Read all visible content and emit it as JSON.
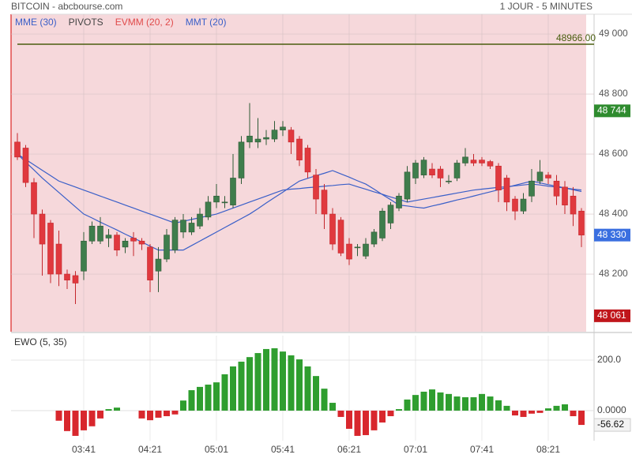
{
  "header": {
    "title": "BITCOIN - abcbourse.com",
    "period": "1 JOUR - 5 MINUTES"
  },
  "chart_data": [
    {
      "type": "candlestick",
      "categories": [
        null,
        null,
        null,
        null,
        null,
        null,
        null,
        null,
        "03:41",
        null,
        null,
        null,
        null,
        null,
        null,
        null,
        "04:21",
        null,
        null,
        null,
        null,
        null,
        null,
        null,
        "05:01",
        null,
        null,
        null,
        null,
        null,
        null,
        null,
        "05:41",
        null,
        null,
        null,
        null,
        null,
        null,
        null,
        "06:21",
        null,
        null,
        null,
        null,
        null,
        null,
        null,
        "07:01",
        null,
        null,
        null,
        null,
        null,
        null,
        null,
        "07:41",
        null,
        null,
        null,
        null,
        null,
        null,
        null,
        "08:21",
        null,
        null,
        null,
        null
      ],
      "open": [
        48640,
        48620,
        48505,
        48400,
        48370,
        48300,
        48200,
        48195,
        48210,
        48310,
        48310,
        48320,
        48330,
        48290,
        48320,
        48310,
        48290,
        48210,
        48250,
        48280,
        48340,
        48340,
        48360,
        48390,
        48440,
        48440,
        48430,
        48520,
        48640,
        48640,
        48650,
        48650,
        48680,
        48680,
        48650,
        48620,
        48530,
        48480,
        48400,
        48380,
        48300,
        48290,
        48260,
        48300,
        48320,
        48370,
        48420,
        48450,
        48520,
        48530,
        48550,
        48550,
        48510,
        48520,
        48570,
        48580,
        48580,
        48575,
        48560,
        48520,
        48450,
        48410,
        48460,
        48510,
        48530,
        48510,
        48490,
        48460,
        48410
      ],
      "close": [
        48590,
        48505,
        48400,
        48300,
        48200,
        48200,
        48180,
        48170,
        48310,
        48360,
        48360,
        48330,
        48280,
        48310,
        48310,
        48300,
        48180,
        48250,
        48330,
        48380,
        48380,
        48370,
        48400,
        48440,
        48460,
        48440,
        48520,
        48640,
        48660,
        48650,
        48655,
        48680,
        48690,
        48640,
        48580,
        48540,
        48450,
        48400,
        48300,
        48270,
        48250,
        48290,
        48300,
        48340,
        48410,
        48430,
        48460,
        48540,
        48570,
        48580,
        48530,
        48520,
        48510,
        48570,
        48590,
        48570,
        48570,
        48560,
        48480,
        48440,
        48410,
        48450,
        48510,
        48540,
        48520,
        48460,
        48430,
        48400,
        48330
      ],
      "high": [
        48670,
        48630,
        48520,
        48415,
        48380,
        48345,
        48215,
        48210,
        48340,
        48375,
        48390,
        48350,
        48340,
        48320,
        48340,
        48320,
        48300,
        48290,
        48350,
        48390,
        48400,
        48390,
        48420,
        48460,
        48500,
        48460,
        48600,
        48660,
        48770,
        48720,
        48680,
        48710,
        48710,
        48690,
        48660,
        48630,
        48550,
        48500,
        48420,
        48390,
        48320,
        48300,
        48320,
        48350,
        48420,
        48440,
        48470,
        48560,
        48580,
        48590,
        48570,
        48560,
        48530,
        48580,
        48620,
        48600,
        48590,
        48580,
        48570,
        48530,
        48460,
        48470,
        48550,
        48580,
        48540,
        48530,
        48510,
        48490,
        48420
      ],
      "low": [
        48580,
        48490,
        48320,
        48195,
        48170,
        48160,
        48150,
        48100,
        48180,
        48300,
        48300,
        48290,
        48260,
        48270,
        48260,
        48280,
        48140,
        48140,
        48240,
        48270,
        48320,
        48330,
        48350,
        48380,
        48420,
        48420,
        48420,
        48500,
        48620,
        48620,
        48630,
        48640,
        48660,
        48600,
        48560,
        48520,
        48400,
        48350,
        48280,
        48260,
        48230,
        48260,
        48250,
        48290,
        48310,
        48350,
        48410,
        48440,
        48500,
        48520,
        48520,
        48490,
        48500,
        48510,
        48560,
        48560,
        48560,
        48550,
        48440,
        48410,
        48380,
        48400,
        48440,
        48500,
        48500,
        48430,
        48400,
        48360,
        48290
      ],
      "up_color": "#3f7d4c",
      "down_color": "#e0393e",
      "series": [
        {
          "name": "MME (30)",
          "color": "#3a5fc8",
          "values": [
            48600,
            48582,
            48564,
            48546,
            48528,
            48510,
            48500,
            48490,
            48480,
            48470,
            48460,
            48450,
            48440,
            48430,
            48420,
            48410,
            48400,
            48390,
            48380,
            48370,
            48376,
            48382,
            48388,
            48394,
            48400,
            48410,
            48420,
            48430,
            48440,
            48450,
            48460,
            48470,
            48480,
            48483,
            48485,
            48488,
            48490,
            48493,
            48495,
            48498,
            48500,
            48491,
            48483,
            48474,
            48466,
            48457,
            48449,
            48440,
            48445,
            48450,
            48455,
            48460,
            48465,
            48470,
            48475,
            48480,
            48483,
            48486,
            48489,
            48491,
            48494,
            48497,
            48500,
            48497,
            48493,
            48490,
            48487,
            48483,
            48480
          ]
        },
        {
          "name": "MMT (20)",
          "color": "#3a5fc8",
          "values": [
            48600,
            48573,
            48547,
            48520,
            48496,
            48472,
            48448,
            48424,
            48400,
            48387,
            48373,
            48360,
            48347,
            48333,
            48320,
            48307,
            48293,
            48280,
            48280,
            48280,
            48280,
            48295,
            48310,
            48325,
            48340,
            48355,
            48370,
            48385,
            48400,
            48418,
            48437,
            48455,
            48473,
            48492,
            48510,
            48519,
            48528,
            48536,
            48545,
            48534,
            48523,
            48511,
            48500,
            48483,
            48465,
            48448,
            48430,
            48427,
            48423,
            48420,
            48427,
            48433,
            48440,
            48447,
            48453,
            48460,
            48467,
            48474,
            48481,
            48489,
            48496,
            48503,
            48510,
            48504,
            48498,
            48493,
            48487,
            48481,
            48475
          ]
        }
      ],
      "pivot": {
        "name": "PIVOTS",
        "value": 48966,
        "label": "48966.00",
        "color": "#4a5e10",
        "legend_color": "#444444"
      },
      "band": {
        "name": "EVMM (20, 2)",
        "color": "#e04a4a",
        "fill": "#f6d8db"
      },
      "price_tags": [
        {
          "value": 48744,
          "label": "48 744",
          "color": "#2e8b2e"
        },
        {
          "value": 48330,
          "label": "48 330",
          "color": "#3a6fe0"
        },
        {
          "value": 48061,
          "label": "48 061",
          "color": "#c0161b"
        }
      ],
      "ylim": [
        48008,
        49066
      ],
      "yticks": [
        {
          "value": 48200,
          "label": "48 200"
        },
        {
          "value": 48400,
          "label": "48 400"
        },
        {
          "value": 48600,
          "label": "48 600"
        },
        {
          "value": 48800,
          "label": "48 800"
        },
        {
          "value": 49000,
          "label": "49 000"
        }
      ],
      "grid": true
    },
    {
      "type": "bar",
      "title": "EWO (5, 35)",
      "values": [
        null,
        null,
        null,
        null,
        null,
        -40,
        -81,
        -100,
        -78,
        -62,
        -31,
        6,
        12,
        null,
        null,
        -31,
        -38,
        -28,
        -22,
        -15,
        40,
        81,
        94,
        103,
        112,
        144,
        175,
        194,
        212,
        228,
        244,
        247,
        234,
        219,
        203,
        175,
        137,
        87,
        31,
        -25,
        -72,
        -100,
        -97,
        -78,
        -47,
        -22,
        6,
        44,
        62,
        75,
        84,
        72,
        66,
        56,
        53,
        53,
        66,
        56,
        41,
        19,
        -19,
        -25,
        -12,
        -9,
        9,
        19,
        25,
        -22,
        -56.62
      ],
      "positive_color": "#2f9e2f",
      "negative_color": "#d8272d",
      "value_tag": {
        "value": -56.62,
        "label": "-56.62"
      },
      "ylim": [
        -119,
        297
      ],
      "yticks": [
        {
          "value": 0,
          "label": "0.0000"
        },
        {
          "value": 200,
          "label": "200.0"
        }
      ],
      "grid": true
    }
  ]
}
